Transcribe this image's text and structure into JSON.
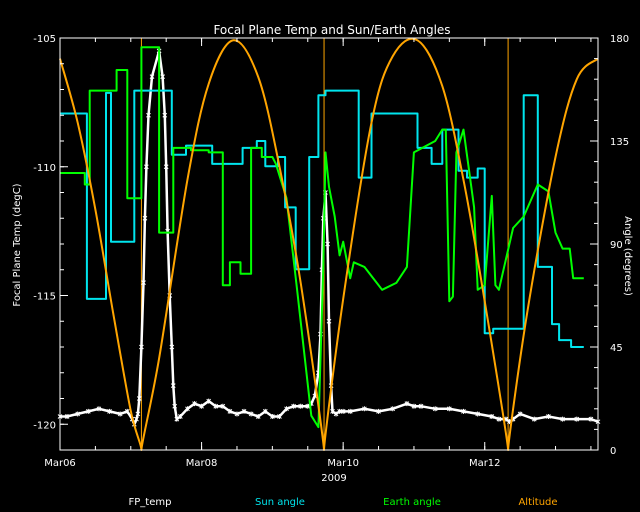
{
  "chart_data": {
    "type": "line",
    "title": "Focal Plane Temp and Sun/Earth Angles",
    "xlabel": "2009",
    "ylabel_left": "Focal Plane Temp (degC)",
    "ylabel_right": "Angle (degrees)",
    "x_unit": "day of March 2009",
    "xlim": [
      6.0,
      13.6
    ],
    "ylim_left": [
      -121,
      -105
    ],
    "ylim_right": [
      0,
      180
    ],
    "x_ticks": [
      {
        "x": 6,
        "label": "Mar06"
      },
      {
        "x": 8,
        "label": "Mar08"
      },
      {
        "x": 10,
        "label": "Mar10"
      },
      {
        "x": 12,
        "label": "Mar12"
      }
    ],
    "y_ticks_left": [
      -105,
      -110,
      -115,
      -120
    ],
    "y_ticks_right": [
      180,
      135,
      90,
      45,
      0
    ],
    "grid": false,
    "legend_position": "bottom",
    "markers": [
      7.15,
      9.73,
      12.33
    ],
    "colors": {
      "fp_temp": "#ffffff",
      "sun_angle": "#00e5ee",
      "earth_angle": "#00ff00",
      "altitude": "#ffa500",
      "marker": "#ffa500",
      "axes": "#ffffff"
    },
    "series": [
      {
        "name": "FP_temp",
        "axis": "left",
        "style": "points",
        "x": [
          6.0,
          6.1,
          6.25,
          6.4,
          6.55,
          6.7,
          6.85,
          6.95,
          7.02,
          7.05,
          7.08,
          7.1,
          7.12,
          7.15,
          7.18,
          7.2,
          7.22,
          7.25,
          7.3,
          7.4,
          7.45,
          7.48,
          7.5,
          7.52,
          7.55,
          7.58,
          7.6,
          7.62,
          7.65,
          7.7,
          7.8,
          7.9,
          8.0,
          8.1,
          8.2,
          8.3,
          8.4,
          8.5,
          8.6,
          8.7,
          8.8,
          8.9,
          9.0,
          9.1,
          9.2,
          9.3,
          9.4,
          9.5,
          9.55,
          9.6,
          9.65,
          9.68,
          9.7,
          9.72,
          9.75,
          9.78,
          9.8,
          9.83,
          9.85,
          9.9,
          9.95,
          10.0,
          10.1,
          10.3,
          10.5,
          10.7,
          10.9,
          11.0,
          11.1,
          11.3,
          11.5,
          11.7,
          11.9,
          12.1,
          12.2,
          12.3,
          12.35,
          12.4,
          12.5,
          12.7,
          12.9,
          13.1,
          13.3,
          13.5,
          13.6
        ],
        "y": [
          -119.7,
          -119.7,
          -119.6,
          -119.5,
          -119.4,
          -119.5,
          -119.6,
          -119.5,
          -119.8,
          -120.0,
          -119.8,
          -119.6,
          -119.0,
          -117.0,
          -114.5,
          -112.0,
          -110.0,
          -108.0,
          -106.5,
          -105.5,
          -106.5,
          -108.0,
          -110.0,
          -112.5,
          -115.0,
          -117.0,
          -118.5,
          -119.3,
          -119.8,
          -119.7,
          -119.4,
          -119.2,
          -119.3,
          -119.1,
          -119.3,
          -119.3,
          -119.5,
          -119.6,
          -119.5,
          -119.6,
          -119.7,
          -119.5,
          -119.7,
          -119.7,
          -119.4,
          -119.3,
          -119.3,
          -119.3,
          -119.2,
          -118.9,
          -118.0,
          -116.5,
          -114.0,
          -112.0,
          -111.0,
          -113.0,
          -116.0,
          -118.5,
          -119.5,
          -119.6,
          -119.5,
          -119.5,
          -119.5,
          -119.4,
          -119.5,
          -119.4,
          -119.2,
          -119.3,
          -119.3,
          -119.4,
          -119.4,
          -119.5,
          -119.6,
          -119.7,
          -119.8,
          -119.8,
          -119.9,
          -119.8,
          -119.6,
          -119.8,
          -119.7,
          -119.8,
          -119.8,
          -119.8,
          -119.9
        ]
      },
      {
        "name": "Sun angle",
        "axis": "right",
        "style": "line",
        "x": [
          6.0,
          6.38,
          6.38,
          6.65,
          6.65,
          6.72,
          6.72,
          7.05,
          7.05,
          7.58,
          7.58,
          7.78,
          7.78,
          8.15,
          8.15,
          8.58,
          8.58,
          8.65,
          8.65,
          8.78,
          8.78,
          8.9,
          8.9,
          9.08,
          9.08,
          9.18,
          9.18,
          9.33,
          9.33,
          9.52,
          9.52,
          9.65,
          9.65,
          9.75,
          9.75,
          10.22,
          10.22,
          10.4,
          10.4,
          11.05,
          11.05,
          11.25,
          11.25,
          11.4,
          11.4,
          11.63,
          11.63,
          11.75,
          11.75,
          11.9,
          11.9,
          12.0,
          12.0,
          12.12,
          12.12,
          12.55,
          12.55,
          12.75,
          12.75,
          12.95,
          12.95,
          13.05,
          13.05,
          13.22,
          13.22,
          13.4
        ],
        "y": [
          147,
          147,
          66,
          66,
          156,
          156,
          91,
          91,
          157,
          157,
          129,
          129,
          133,
          133,
          125,
          125,
          132,
          132,
          132,
          132,
          135,
          135,
          124,
          124,
          128,
          128,
          106,
          106,
          79,
          79,
          128,
          128,
          155,
          155,
          157,
          157,
          119,
          119,
          147,
          147,
          132,
          132,
          125,
          125,
          140,
          140,
          122,
          122,
          119,
          119,
          123,
          123,
          51,
          51,
          53,
          53,
          155,
          155,
          80,
          80,
          55,
          55,
          48,
          48,
          45,
          45
        ]
      },
      {
        "name": "Earth angle",
        "axis": "right",
        "style": "line",
        "x": [
          6.0,
          6.35,
          6.35,
          6.42,
          6.42,
          6.8,
          6.8,
          6.95,
          6.95,
          7.15,
          7.15,
          7.4,
          7.4,
          7.6,
          7.6,
          7.85,
          7.85,
          8.1,
          8.1,
          8.3,
          8.3,
          8.4,
          8.4,
          8.55,
          8.55,
          8.7,
          8.7,
          8.85,
          8.85,
          9.0,
          9.05,
          9.2,
          9.35,
          9.55,
          9.65,
          9.72,
          9.75,
          9.8,
          9.88,
          9.95,
          10.0,
          10.1,
          10.15,
          10.3,
          10.55,
          10.75,
          10.9,
          11.0,
          11.3,
          11.4,
          11.45,
          11.5,
          11.55,
          11.6,
          11.7,
          11.85,
          11.9,
          12.0,
          12.1,
          12.15,
          12.2,
          12.4,
          12.55,
          12.75,
          12.9,
          13.0,
          13.1,
          13.2,
          13.25,
          13.4
        ],
        "y": [
          121,
          121,
          116,
          116,
          157,
          157,
          166,
          166,
          110,
          110,
          176,
          176,
          95,
          95,
          132,
          132,
          131,
          131,
          130,
          130,
          72,
          72,
          82,
          82,
          77,
          77,
          132,
          132,
          128,
          128,
          125,
          110,
          70,
          15,
          10,
          80,
          130,
          115,
          102,
          85,
          91,
          75,
          82,
          80,
          70,
          73,
          80,
          130,
          135,
          140,
          140,
          65,
          67,
          130,
          140,
          106,
          70,
          72,
          111,
          72,
          70,
          97,
          102,
          116,
          113,
          95,
          88,
          88,
          75,
          75
        ]
      },
      {
        "name": "Altitude",
        "axis": "right",
        "style": "curve",
        "period_days": 2.6,
        "x": [
          6.0,
          6.25,
          6.5,
          6.75,
          7.0,
          7.15,
          7.4,
          7.8,
          8.1,
          8.45,
          8.8,
          9.1,
          9.4,
          9.73,
          10.0,
          10.4,
          10.7,
          11.05,
          11.4,
          11.7,
          12.0,
          12.33,
          12.6,
          13.0,
          13.3,
          13.6
        ],
        "y": [
          171,
          143,
          105,
          60,
          17,
          0,
          40,
          118,
          160,
          179,
          163,
          124,
          73,
          0,
          66,
          143,
          172,
          179,
          159,
          118,
          65,
          0,
          60,
          128,
          162,
          171
        ]
      }
    ]
  }
}
